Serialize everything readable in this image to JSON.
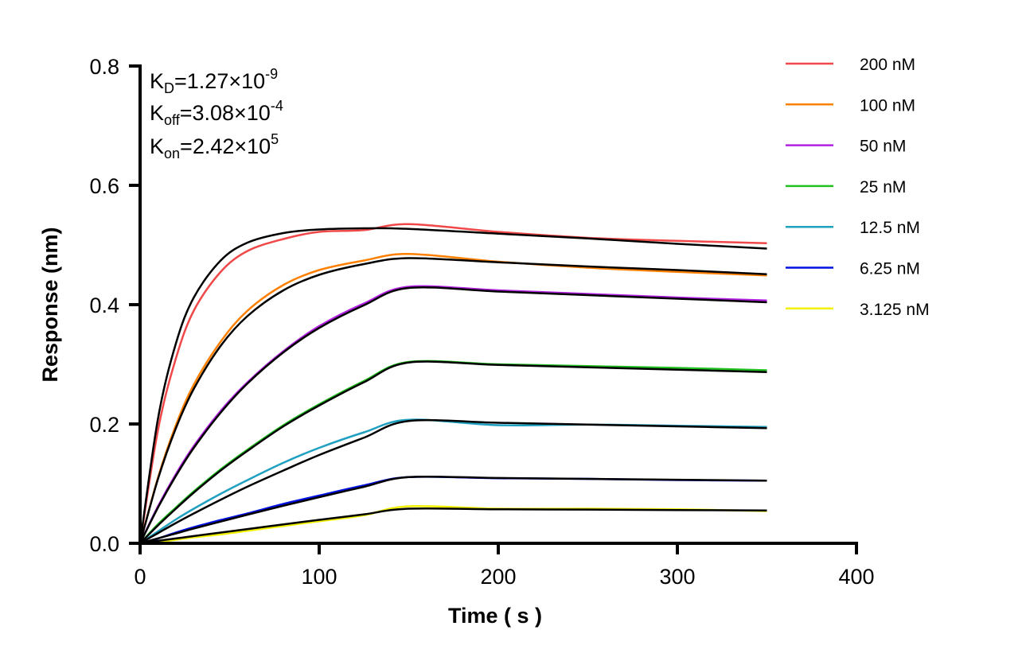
{
  "chart_data": {
    "type": "line",
    "title": "",
    "xlabel": "Time ( s )",
    "ylabel": "Response (nm)",
    "xlim": [
      0,
      400
    ],
    "ylim": [
      0,
      0.8
    ],
    "x_ticks": [
      "0",
      "100",
      "200",
      "300",
      "400"
    ],
    "y_ticks": [
      "0.0",
      "0.2",
      "0.4",
      "0.6",
      "0.8"
    ],
    "grid": false,
    "legend_position": "top-right (outside plot)",
    "annotations": [
      {
        "main": "K",
        "sub": "D",
        "value": "=1.27×10",
        "sup": "-9"
      },
      {
        "main": "K",
        "sub": "off",
        "value": "=3.08×10",
        "sup": "-4"
      },
      {
        "main": "K",
        "sub": "on",
        "value": "=2.42×10",
        "sup": "5"
      }
    ],
    "fit_color": "#000000",
    "x": [
      0,
      10,
      20,
      30,
      45,
      60,
      80,
      100,
      125,
      150,
      200,
      250,
      300,
      350
    ],
    "series": [
      {
        "name": "200 nM",
        "color": "#f04848",
        "measured": [
          0,
          0.19,
          0.31,
          0.39,
          0.455,
          0.49,
          0.51,
          0.522,
          0.525,
          0.535,
          0.522,
          0.512,
          0.507,
          0.503
        ],
        "fit": [
          0,
          0.209,
          0.335,
          0.412,
          0.474,
          0.504,
          0.52,
          0.526,
          0.528,
          0.527,
          0.519,
          0.511,
          0.502,
          0.494
        ]
      },
      {
        "name": "100 nM",
        "color": "#ff8000",
        "measured": [
          0,
          0.11,
          0.198,
          0.266,
          0.338,
          0.39,
          0.433,
          0.458,
          0.474,
          0.485,
          0.472,
          0.462,
          0.455,
          0.449
        ],
        "fit": [
          0,
          0.108,
          0.193,
          0.259,
          0.331,
          0.381,
          0.424,
          0.45,
          0.468,
          0.478,
          0.471,
          0.464,
          0.458,
          0.451
        ]
      },
      {
        "name": "50 nM",
        "color": "#b020e0",
        "measured": [
          0,
          0.062,
          0.116,
          0.163,
          0.222,
          0.27,
          0.322,
          0.364,
          0.402,
          0.43,
          0.424,
          0.418,
          0.412,
          0.407
        ],
        "fit": [
          0,
          0.06,
          0.113,
          0.16,
          0.219,
          0.268,
          0.32,
          0.361,
          0.399,
          0.428,
          0.422,
          0.416,
          0.41,
          0.404
        ]
      },
      {
        "name": "25 nM",
        "color": "#20c020",
        "measured": [
          0,
          0.032,
          0.06,
          0.087,
          0.124,
          0.157,
          0.198,
          0.233,
          0.272,
          0.304,
          0.3,
          0.297,
          0.294,
          0.29
        ],
        "fit": [
          0,
          0.03,
          0.058,
          0.085,
          0.122,
          0.155,
          0.196,
          0.231,
          0.27,
          0.303,
          0.299,
          0.295,
          0.291,
          0.287
        ]
      },
      {
        "name": "12.5 nM",
        "color": "#20a0c0",
        "measured": [
          0,
          0.02,
          0.04,
          0.058,
          0.083,
          0.106,
          0.135,
          0.16,
          0.186,
          0.207,
          0.198,
          0.199,
          0.197,
          0.195
        ],
        "fit": [
          0,
          0.017,
          0.034,
          0.05,
          0.073,
          0.095,
          0.122,
          0.148,
          0.177,
          0.205,
          0.202,
          0.199,
          0.196,
          0.193
        ]
      },
      {
        "name": "6.25 nM",
        "color": "#0010e0",
        "measured": [
          0,
          0.008,
          0.018,
          0.027,
          0.039,
          0.05,
          0.066,
          0.08,
          0.097,
          0.111,
          0.109,
          0.108,
          0.106,
          0.105
        ],
        "fit": [
          0,
          0.0083,
          0.0165,
          0.0247,
          0.0364,
          0.048,
          0.0629,
          0.0773,
          0.0947,
          0.111,
          0.1095,
          0.108,
          0.1065,
          0.105
        ]
      },
      {
        "name": "3.125 nM",
        "color": "#f0f000",
        "measured": [
          0,
          0.002,
          0.006,
          0.01,
          0.015,
          0.021,
          0.029,
          0.037,
          0.047,
          0.062,
          0.058,
          0.058,
          0.057,
          0.054
        ],
        "fit": [
          0,
          0.0041,
          0.0081,
          0.0121,
          0.018,
          0.0239,
          0.0317,
          0.0393,
          0.0485,
          0.058,
          0.057,
          0.0565,
          0.0557,
          0.055
        ]
      }
    ]
  }
}
